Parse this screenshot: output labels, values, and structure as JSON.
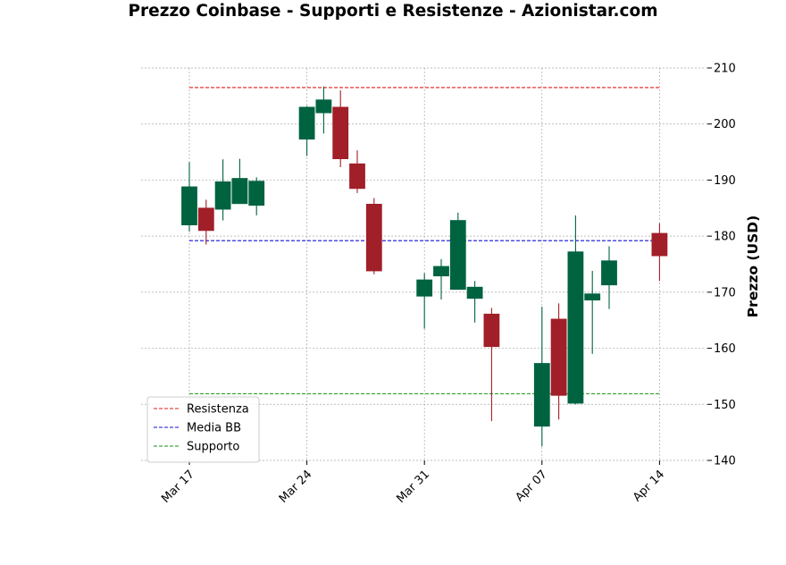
{
  "chart_data": {
    "type": "candlestick",
    "title": "Prezzo Coinbase - Supporti e Resistenze - Azionistar.com",
    "xlabel": "",
    "ylabel": "Prezzo (USD)",
    "ylim": [
      140,
      210
    ],
    "y_ticks": [
      140,
      150,
      160,
      170,
      180,
      190,
      200,
      210
    ],
    "grid": true,
    "legend_position": "lower-left",
    "x_ticks": [
      {
        "day_index": 0,
        "label": "Mar 17"
      },
      {
        "day_index": 7,
        "label": "Mar 24"
      },
      {
        "day_index": 14,
        "label": "Mar 31"
      },
      {
        "day_index": 21,
        "label": "Apr 07"
      },
      {
        "day_index": 28,
        "label": "Apr 14"
      }
    ],
    "candles": [
      {
        "day_index": 0,
        "open": 182.0,
        "high": 193.2,
        "low": 180.8,
        "close": 188.8
      },
      {
        "day_index": 1,
        "open": 185.0,
        "high": 186.5,
        "low": 178.5,
        "close": 181.0
      },
      {
        "day_index": 2,
        "open": 184.8,
        "high": 193.7,
        "low": 182.8,
        "close": 189.7
      },
      {
        "day_index": 3,
        "open": 185.8,
        "high": 193.8,
        "low": 185.8,
        "close": 190.3
      },
      {
        "day_index": 4,
        "open": 185.5,
        "high": 190.5,
        "low": 183.7,
        "close": 189.8
      },
      {
        "day_index": 7,
        "open": 197.3,
        "high": 203.2,
        "low": 194.3,
        "close": 203.0
      },
      {
        "day_index": 8,
        "open": 202.0,
        "high": 206.7,
        "low": 198.3,
        "close": 204.3
      },
      {
        "day_index": 9,
        "open": 203.0,
        "high": 206.0,
        "low": 192.3,
        "close": 193.8
      },
      {
        "day_index": 10,
        "open": 192.9,
        "high": 195.3,
        "low": 187.7,
        "close": 188.5
      },
      {
        "day_index": 11,
        "open": 185.7,
        "high": 186.8,
        "low": 173.2,
        "close": 173.8
      },
      {
        "day_index": 14,
        "open": 169.3,
        "high": 173.4,
        "low": 163.5,
        "close": 172.2
      },
      {
        "day_index": 15,
        "open": 172.9,
        "high": 175.9,
        "low": 168.7,
        "close": 174.6
      },
      {
        "day_index": 16,
        "open": 170.5,
        "high": 184.2,
        "low": 170.5,
        "close": 182.8
      },
      {
        "day_index": 17,
        "open": 168.9,
        "high": 172.0,
        "low": 164.6,
        "close": 170.9
      },
      {
        "day_index": 18,
        "open": 166.1,
        "high": 167.2,
        "low": 147.0,
        "close": 160.3
      },
      {
        "day_index": 21,
        "open": 146.1,
        "high": 167.4,
        "low": 142.5,
        "close": 157.3
      },
      {
        "day_index": 22,
        "open": 165.2,
        "high": 168.0,
        "low": 147.3,
        "close": 151.6
      },
      {
        "day_index": 23,
        "open": 150.2,
        "high": 183.7,
        "low": 150.0,
        "close": 177.2
      },
      {
        "day_index": 24,
        "open": 168.6,
        "high": 173.8,
        "low": 159.0,
        "close": 169.7
      },
      {
        "day_index": 25,
        "open": 171.3,
        "high": 178.2,
        "low": 167.0,
        "close": 175.6
      },
      {
        "day_index": 28,
        "open": 180.5,
        "high": 182.3,
        "low": 172.0,
        "close": 176.5
      }
    ],
    "series": [
      {
        "name": "Resistenza",
        "value": 206.5,
        "color": "#dd1c1c",
        "style": "dashed"
      },
      {
        "name": "Media BB",
        "value": 179.2,
        "color": "#1010d8",
        "style": "dashed"
      },
      {
        "name": "Supporto",
        "value": 151.9,
        "color": "#139313",
        "style": "dashed"
      }
    ],
    "colors": {
      "up": "#006340",
      "down": "#a11f28",
      "grid": "#a8a8a8"
    }
  }
}
